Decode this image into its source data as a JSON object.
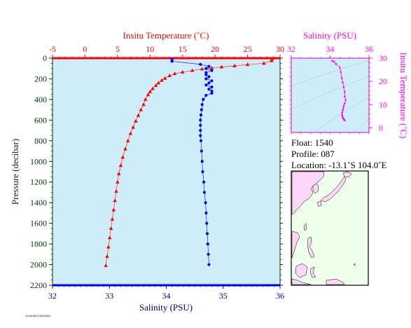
{
  "colors": {
    "temperature": "#ff0000",
    "salinity": "#0000ff",
    "inset_ts": "#ff00ff",
    "plot_bg": "#cdeef8",
    "map_land": "#ffd6f8",
    "map_sea": "#eeffea",
    "pressure_axis": "#003300",
    "salinity_axis_label": "#000080"
  },
  "info": {
    "float_label": "Float:",
    "float_value": "1540",
    "profile_label": "Profile:",
    "profile_value": "087",
    "location_label": "Location:",
    "location_value": "-13.1˚S  104.0˚E"
  },
  "footer_stamp": "1540/087/20040501",
  "chart_data": [
    {
      "type": "line",
      "name": "main-profile",
      "title": "",
      "top_axis_label": "Insitu Temperature (˚C)",
      "top_axis_ticks": [
        "-5",
        "0",
        "5",
        "10",
        "15",
        "20",
        "25",
        "30"
      ],
      "top_axis_range": [
        -5,
        30
      ],
      "bottom_axis_label": "Salinity (PSU)",
      "bottom_axis_ticks": [
        "32",
        "33",
        "34",
        "35",
        "36"
      ],
      "bottom_axis_range": [
        32,
        36
      ],
      "ylabel": "Pressure (decibar)",
      "y_ticks": [
        "0",
        "200",
        "400",
        "600",
        "800",
        "1000",
        "1200",
        "1400",
        "1600",
        "1800",
        "2000",
        "2200"
      ],
      "ylim": [
        0,
        2200
      ],
      "y_inverted": true,
      "grid": false,
      "series": [
        {
          "key": "temperature",
          "marker": "triangle",
          "x_axis": "top",
          "points": [
            [
              28.8,
              5
            ],
            [
              28.7,
              25
            ],
            [
              27.5,
              50
            ],
            [
              25.0,
              62
            ],
            [
              23.0,
              75
            ],
            [
              21.0,
              85
            ],
            [
              19.5,
              95
            ],
            [
              18.0,
              105
            ],
            [
              16.5,
              120
            ],
            [
              15.0,
              135
            ],
            [
              13.8,
              150
            ],
            [
              13.0,
              170
            ],
            [
              12.3,
              195
            ],
            [
              11.8,
              215
            ],
            [
              11.3,
              240
            ],
            [
              10.9,
              265
            ],
            [
              10.4,
              295
            ],
            [
              10.0,
              325
            ],
            [
              9.7,
              355
            ],
            [
              9.3,
              400
            ],
            [
              9.0,
              450
            ],
            [
              8.6,
              500
            ],
            [
              8.2,
              555
            ],
            [
              7.8,
              610
            ],
            [
              7.4,
              670
            ],
            [
              7.0,
              730
            ],
            [
              6.6,
              800
            ],
            [
              6.2,
              880
            ],
            [
              5.8,
              960
            ],
            [
              5.5,
              1040
            ],
            [
              5.2,
              1120
            ],
            [
              5.0,
              1200
            ],
            [
              4.8,
              1290
            ],
            [
              4.6,
              1380
            ],
            [
              4.4,
              1470
            ],
            [
              4.2,
              1560
            ],
            [
              4.0,
              1650
            ],
            [
              3.8,
              1740
            ],
            [
              3.6,
              1830
            ],
            [
              3.4,
              1920
            ],
            [
              3.2,
              2010
            ]
          ]
        },
        {
          "key": "salinity",
          "marker": "dot",
          "x_axis": "bottom",
          "points": [
            [
              34.1,
              10
            ],
            [
              34.1,
              30
            ],
            [
              34.6,
              60
            ],
            [
              34.75,
              80
            ],
            [
              34.7,
              100
            ],
            [
              34.8,
              120
            ],
            [
              34.7,
              140
            ],
            [
              34.7,
              160
            ],
            [
              34.75,
              180
            ],
            [
              34.7,
              200
            ],
            [
              34.8,
              220
            ],
            [
              34.75,
              240
            ],
            [
              34.7,
              260
            ],
            [
              34.8,
              280
            ],
            [
              34.75,
              300
            ],
            [
              34.8,
              320
            ],
            [
              34.8,
              340
            ],
            [
              34.7,
              360
            ],
            [
              34.65,
              400
            ],
            [
              34.63,
              450
            ],
            [
              34.62,
              500
            ],
            [
              34.61,
              550
            ],
            [
              34.6,
              600
            ],
            [
              34.6,
              650
            ],
            [
              34.6,
              700
            ],
            [
              34.6,
              750
            ],
            [
              34.61,
              800
            ],
            [
              34.62,
              900
            ],
            [
              34.63,
              1000
            ],
            [
              34.64,
              1100
            ],
            [
              34.66,
              1200
            ],
            [
              34.67,
              1300
            ],
            [
              34.69,
              1400
            ],
            [
              34.7,
              1500
            ],
            [
              34.71,
              1600
            ],
            [
              34.72,
              1700
            ],
            [
              34.73,
              1800
            ],
            [
              34.74,
              1900
            ],
            [
              34.75,
              2000
            ]
          ]
        }
      ]
    },
    {
      "type": "scatter",
      "name": "ts-inset",
      "title": "",
      "top_axis_label": "Salinity (PSU)",
      "top_axis_ticks": [
        "32",
        "34",
        "36"
      ],
      "xlim": [
        32,
        36
      ],
      "right_axis_label": "Insitu Temperature (˚C)",
      "right_axis_ticks": [
        "0",
        "10",
        "20",
        "30"
      ],
      "ylim": [
        -2,
        30
      ],
      "points": [
        [
          34.1,
          28.8
        ],
        [
          34.2,
          28.5
        ],
        [
          34.3,
          27.5
        ],
        [
          34.5,
          26.0
        ],
        [
          34.55,
          24.0
        ],
        [
          34.6,
          21.5
        ],
        [
          34.65,
          19.5
        ],
        [
          34.7,
          17.5
        ],
        [
          34.75,
          15.5
        ],
        [
          34.75,
          13.5
        ],
        [
          34.8,
          12.0
        ],
        [
          34.75,
          10.5
        ],
        [
          34.7,
          9.5
        ],
        [
          34.68,
          8.5
        ],
        [
          34.65,
          7.5
        ],
        [
          34.62,
          6.5
        ],
        [
          34.62,
          5.5
        ],
        [
          34.63,
          4.8
        ],
        [
          34.66,
          4.2
        ],
        [
          34.7,
          3.8
        ],
        [
          34.73,
          3.4
        ],
        [
          34.75,
          3.2
        ]
      ],
      "density_contours": true
    }
  ]
}
